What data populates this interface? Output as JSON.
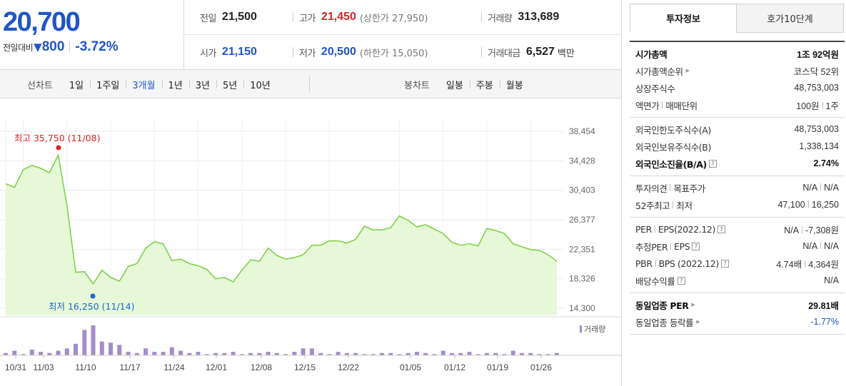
{
  "price": {
    "current": "20,700",
    "change_label": "전일대비",
    "change_arrow": "▼",
    "change_amount": "800",
    "change_rate": "-3.72%"
  },
  "quote": {
    "row1": [
      {
        "label": "전일",
        "value": "21,500"
      },
      {
        "label": "고가",
        "value": "21,450",
        "note": "(상한가 27,950)"
      },
      {
        "label": "거래량",
        "value": "313,689"
      }
    ],
    "row2": [
      {
        "label": "시가",
        "value": "21,150"
      },
      {
        "label": "저가",
        "value": "20,500",
        "note": "(하한가 15,050)"
      },
      {
        "label": "거래대금",
        "value": "6,527",
        "unit": "백만"
      }
    ]
  },
  "period_bar": {
    "line_title": "선차트",
    "line_items": [
      "1일",
      "1주일",
      "3개월",
      "1년",
      "3년",
      "5년",
      "10년"
    ],
    "active": "3개월",
    "candle_title": "봉차트",
    "candle_items": [
      "일봉",
      "주봉",
      "월봉"
    ]
  },
  "chart_data": {
    "type": "area",
    "y_ticks": [
      "38,454",
      "34,428",
      "30,403",
      "26,377",
      "22,351",
      "18,326",
      "14,300"
    ],
    "ylim": [
      14300,
      38454
    ],
    "x_tick_labels": [
      "10/31",
      "11/03",
      "11/10",
      "11/17",
      "11/24",
      "12/01",
      "12/08",
      "12/15",
      "12/22",
      "01/05",
      "01/12",
      "01/19",
      "01/26"
    ],
    "max_label": "최고 35,750 (11/08)",
    "min_label": "최저 16,250 (11/14)",
    "volume_legend": "거래량",
    "colors": {
      "line": "#7fd14a",
      "fill": "#e6f8d8",
      "max": "#e02020",
      "min": "#1e66d0",
      "volume": "#a48cc8"
    },
    "series": [
      {
        "values": [
          31300,
          30800,
          33200,
          33800,
          33400,
          32800,
          35200,
          28300,
          19200,
          19300,
          17600,
          19500,
          18500,
          18000,
          20000,
          20400,
          22500,
          23400,
          23100,
          20800,
          21000,
          20400,
          20100,
          19600,
          18300,
          18500,
          17900,
          19500,
          20900,
          20700,
          22500,
          21500,
          21000,
          21200,
          21600,
          22900,
          22900,
          23500,
          23500,
          23200,
          23700,
          25500,
          25000,
          25000,
          25300,
          26900,
          26300,
          25400,
          25700,
          25100,
          24500,
          23300,
          22900,
          23100,
          22800,
          25200,
          24900,
          24500,
          23100,
          22700,
          22300,
          22200,
          21600,
          20700
        ]
      },
      {
        "name": "거래량",
        "values": [
          2,
          4,
          1,
          5,
          3,
          2,
          4,
          6,
          10,
          22,
          26,
          12,
          11,
          9,
          3,
          2,
          6,
          3,
          3,
          7,
          4,
          2,
          3,
          1,
          2,
          2,
          3,
          1,
          2,
          2,
          3,
          2,
          1,
          3,
          6,
          6,
          2,
          1,
          3,
          2,
          2,
          1,
          1,
          2,
          2,
          1,
          2,
          3,
          2,
          1,
          4,
          2,
          2,
          3,
          1,
          2,
          2,
          1,
          4,
          2,
          2,
          1,
          1,
          2
        ]
      }
    ]
  },
  "side": {
    "tabs": [
      "투자정보",
      "호가10단계"
    ],
    "groups": [
      [
        {
          "label": "시가총액",
          "value": "1조 92억원",
          "bold": true
        },
        {
          "label": "시가총액순위",
          "value": "코스닥 52위",
          "tri": true
        },
        {
          "label": "상장주식수",
          "value": "48,753,003"
        },
        {
          "label": "액면가",
          "label2": "매매단위",
          "value": "100원",
          "value2": "1주"
        }
      ],
      [
        {
          "label": "외국인한도주식수(A)",
          "value": "48,753,003"
        },
        {
          "label": "외국인보유주식수(B)",
          "value": "1,338,134"
        },
        {
          "label": "외국인소진율(B/A)",
          "value": "2.74%",
          "bold": true,
          "help": true
        }
      ],
      [
        {
          "label": "투자의견",
          "label2": "목표주가",
          "value": "N/A",
          "value2": "N/A"
        },
        {
          "label": "52주최고",
          "label2": "최저",
          "value": "47,100",
          "value2": "16,250"
        }
      ],
      [
        {
          "label": "PER",
          "label2": "EPS(2022.12)",
          "value": "N/A",
          "value2": "-7,308원",
          "help": true
        },
        {
          "label": "추정PER",
          "label2": "EPS",
          "value": "N/A",
          "value2": "N/A",
          "help": true
        },
        {
          "label": "PBR",
          "label2": "BPS (2022.12)",
          "value": "4.74배",
          "value2": "4,364원",
          "help": true
        },
        {
          "label": "배당수익률",
          "value": "N/A",
          "help": true
        }
      ],
      [
        {
          "label": "동일업종 PER",
          "value": "29.81배",
          "bold": true,
          "tri": true
        },
        {
          "label": "동일업종 등락률",
          "value": "-1.77%",
          "tri": true,
          "blue": true
        }
      ]
    ]
  }
}
